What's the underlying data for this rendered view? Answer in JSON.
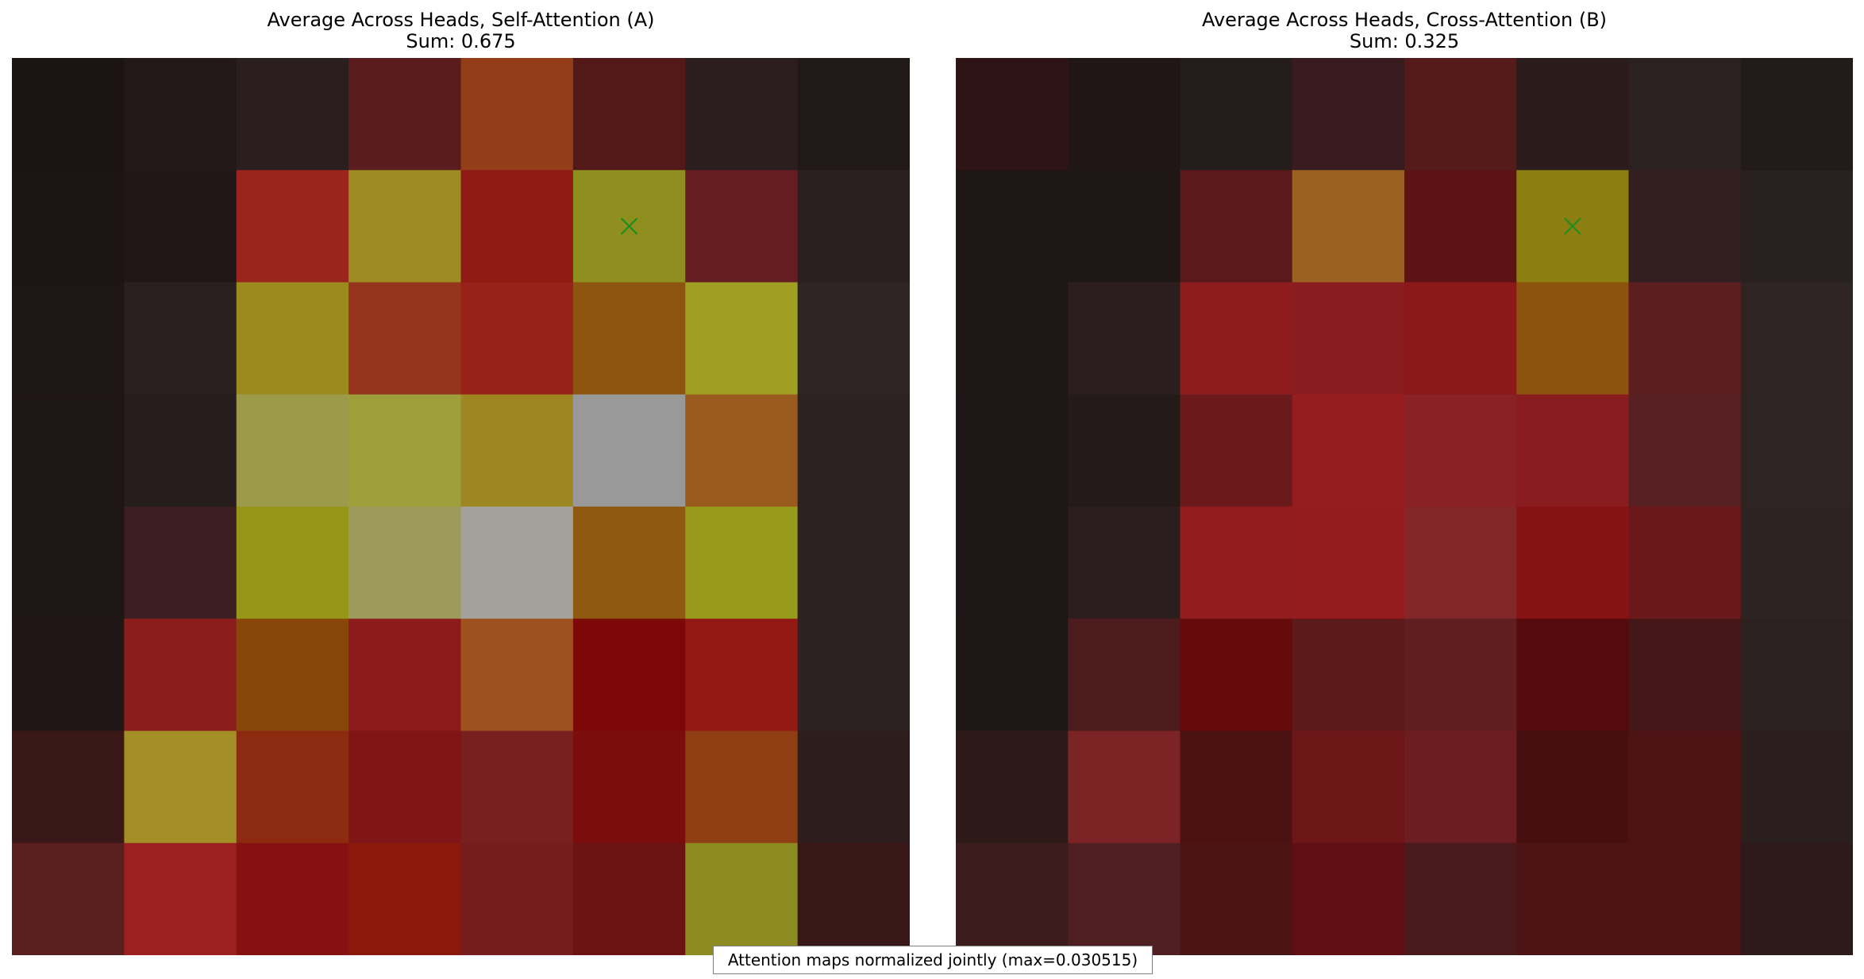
{
  "chart_data": [
    {
      "type": "heatmap",
      "title": "Average Across Heads, Self-Attention (A)",
      "subtitle": "Sum: 0.675",
      "rows": 8,
      "cols": 8,
      "marker": {
        "row": 1,
        "col": 5,
        "symbol": "x",
        "color": "#1f8c1f"
      },
      "cells": [
        [
          "#1c1414",
          "#221817",
          "#2b1e1e",
          "#5b1c1d",
          "#933d19",
          "#531919",
          "#2c1e1e",
          "#211818"
        ],
        [
          "#1d1515",
          "#221717",
          "#9a251d",
          "#9e8b22",
          "#901a14",
          "#8e8f1e",
          "#651d21",
          "#2a2020"
        ],
        [
          "#1e1515",
          "#2a2020",
          "#9c8a1e",
          "#96341d",
          "#962219",
          "#8c540e",
          "#a09f24",
          "#2f2424"
        ],
        [
          "#1e1515",
          "#271d1d",
          "#9d9a4b",
          "#9e9e3a",
          "#9e8723",
          "#999999",
          "#9b5b1f",
          "#2c2222"
        ],
        [
          "#1e1515",
          "#3b1f21",
          "#979619",
          "#9d9b5b",
          "#a2a29a",
          "#905911",
          "#989a1c",
          "#2d2222"
        ],
        [
          "#201616",
          "#8c1d1d",
          "#89460b",
          "#8c1a1a",
          "#9e501e",
          "#7c0808",
          "#931915",
          "#2d2222"
        ],
        [
          "#3a1818",
          "#a38f26",
          "#8c2b10",
          "#801515",
          "#781f1f",
          "#7b0e0d",
          "#8f3e14",
          "#2e1d1d"
        ],
        [
          "#5c1f1f",
          "#9b2020",
          "#851111",
          "#8a190b",
          "#751d1d",
          "#6c1313",
          "#8c8c22",
          "#3a1717"
        ]
      ]
    },
    {
      "type": "heatmap",
      "title": "Average Across Heads, Cross-Attention (B)",
      "subtitle": "Sum: 0.325",
      "rows": 8,
      "cols": 8,
      "marker": {
        "row": 1,
        "col": 5,
        "symbol": "x",
        "color": "#1f8c1f"
      },
      "cells": [
        [
          "#2e1415",
          "#201616",
          "#251c1c",
          "#371b1e",
          "#561a1b",
          "#2b1b1b",
          "#2b2121",
          "#231a1a"
        ],
        [
          "#1e1515",
          "#1f1616",
          "#5a1a1b",
          "#9b6120",
          "#5d1314",
          "#8d7e12",
          "#321f1f",
          "#292121"
        ],
        [
          "#1f1616",
          "#2c1e1e",
          "#8f1c1c",
          "#891c1e",
          "#8b191a",
          "#8c530f",
          "#5d1e20",
          "#2e2424"
        ],
        [
          "#1e1616",
          "#241a1a",
          "#6a1a1b",
          "#961d1d",
          "#8a2124",
          "#881c1e",
          "#572123",
          "#2e2424"
        ],
        [
          "#1e1616",
          "#2c1e1e",
          "#921d1c",
          "#941c1f",
          "#832628",
          "#861314",
          "#6a1819",
          "#2d2323"
        ],
        [
          "#1f1616",
          "#4c1b1c",
          "#650b0c",
          "#5c1a1b",
          "#5f1f20",
          "#550a0b",
          "#451719",
          "#2b2121"
        ],
        [
          "#2c1918",
          "#7c2326",
          "#4c1112",
          "#6d1618",
          "#6b1d20",
          "#461011",
          "#4e1415",
          "#2a1e1e"
        ],
        [
          "#3d1c1e",
          "#4f1f21",
          "#4b1415",
          "#5f0e13",
          "#491b1c",
          "#4e1415",
          "#4f1214",
          "#2e1a1a"
        ]
      ]
    }
  ],
  "footnote": "Attention maps normalized jointly (max=0.030515)"
}
